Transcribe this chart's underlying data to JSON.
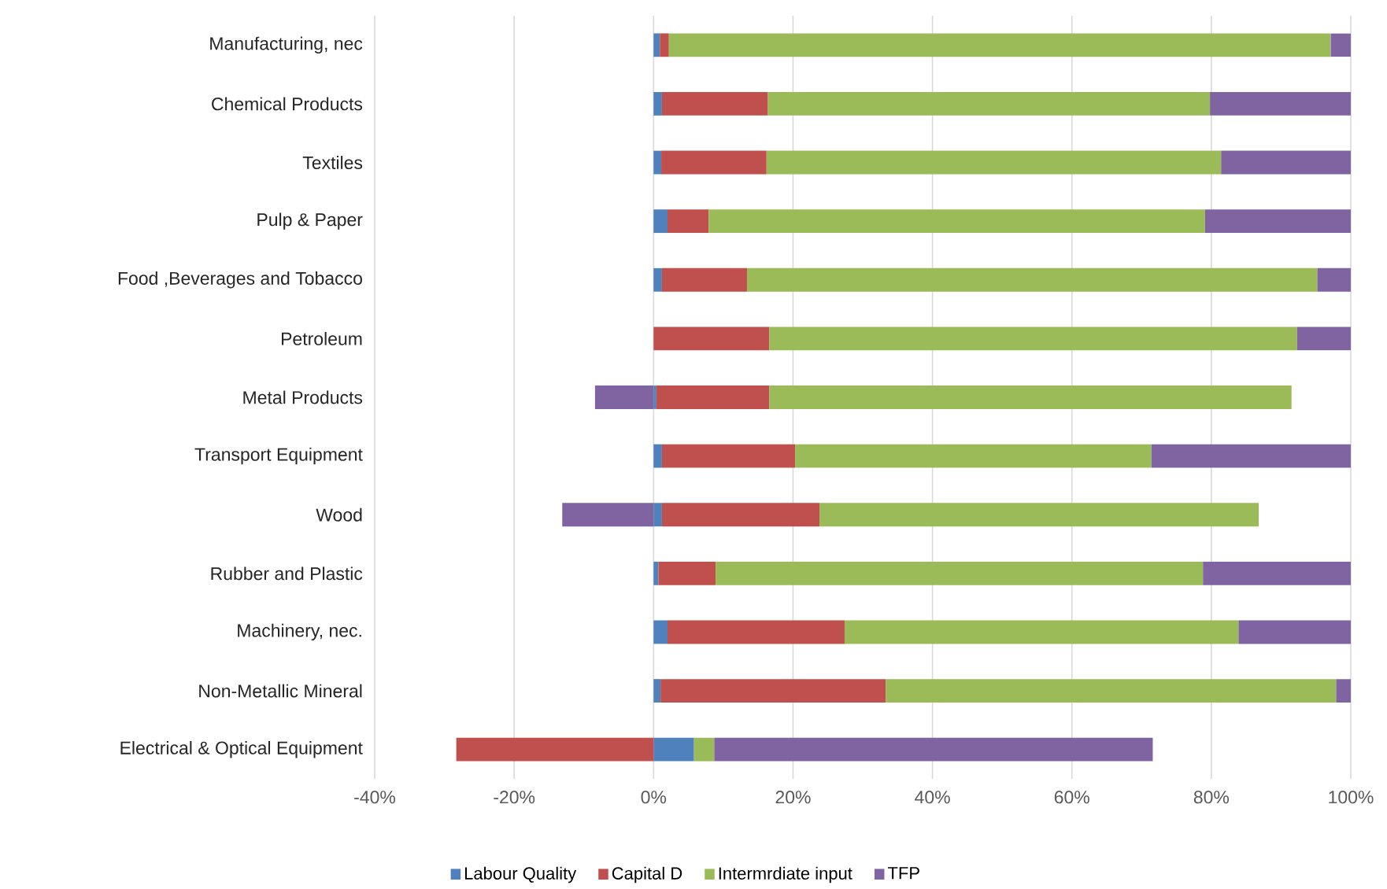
{
  "chart_data": {
    "type": "bar",
    "orientation": "horizontal",
    "stacked": true,
    "categories": [
      "Manufacturing, nec",
      "Chemical Products",
      "Textiles",
      "Pulp & Paper",
      "Food ,Beverages and Tobacco",
      "Petroleum",
      "Metal Products",
      "Transport Equipment",
      "Wood",
      "Rubber and Plastic",
      "Machinery, nec.",
      "Non-Metallic Mineral",
      "Electrical & Optical Equipment"
    ],
    "series": [
      {
        "name": "Labour Quality",
        "color": "#4f81bd",
        "values": [
          0.9,
          1.2,
          1.1,
          2.0,
          1.2,
          0,
          0.4,
          1.2,
          1.2,
          0.7,
          2.0,
          1.0,
          5.8
        ]
      },
      {
        "name": "Capital D",
        "color": "#c0504d",
        "values": [
          1.3,
          15.2,
          15.1,
          5.9,
          12.2,
          16.6,
          16.2,
          19.1,
          22.6,
          8.2,
          25.4,
          32.3,
          -28.3
        ]
      },
      {
        "name": "Intermrdiate input",
        "color": "#9bbb59",
        "values": [
          94.9,
          63.4,
          65.2,
          71.2,
          81.8,
          75.7,
          74.9,
          51.1,
          63.0,
          69.9,
          56.5,
          64.6,
          2.9
        ]
      },
      {
        "name": "TFP",
        "color": "#8064a2",
        "values": [
          2.9,
          20.2,
          18.6,
          20.9,
          4.8,
          7.7,
          -8.4,
          28.6,
          -13.1,
          21.2,
          16.1,
          2.1,
          62.9
        ]
      }
    ],
    "xlim": [
      -40,
      100
    ],
    "xticks": [
      {
        "value": -40,
        "label": "-40%"
      },
      {
        "value": -20,
        "label": "-20%"
      },
      {
        "value": 0,
        "label": "0%"
      },
      {
        "value": 20,
        "label": "20%"
      },
      {
        "value": 40,
        "label": "40%"
      },
      {
        "value": 60,
        "label": "60%"
      },
      {
        "value": 80,
        "label": "80%"
      },
      {
        "value": 100,
        "label": "100%"
      }
    ],
    "grid": "x",
    "legend": "bottom"
  }
}
